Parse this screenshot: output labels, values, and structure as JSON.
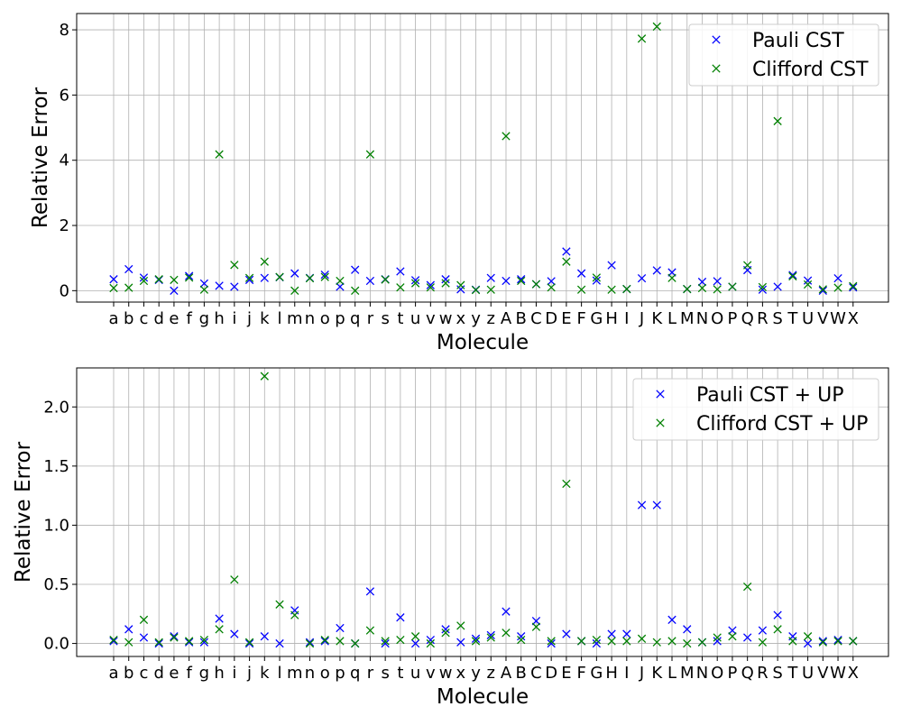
{
  "chart_data": [
    {
      "type": "scatter",
      "title": "",
      "xlabel": "Molecule",
      "ylabel": "Relative Error",
      "ylim": [
        -0.35,
        8.5
      ],
      "yticks": [
        0,
        2,
        4,
        6,
        8
      ],
      "ytick_labels": [
        "0",
        "2",
        "4",
        "6",
        "8"
      ],
      "grid": true,
      "legend_position": "top-right",
      "marker": "x",
      "categories": [
        "a",
        "b",
        "c",
        "d",
        "e",
        "f",
        "g",
        "h",
        "i",
        "j",
        "k",
        "l",
        "m",
        "n",
        "o",
        "p",
        "q",
        "r",
        "s",
        "t",
        "u",
        "v",
        "w",
        "x",
        "y",
        "z",
        "A",
        "B",
        "C",
        "D",
        "E",
        "F",
        "G",
        "H",
        "I",
        "J",
        "K",
        "L",
        "M",
        "N",
        "O",
        "P",
        "Q",
        "R",
        "S",
        "T",
        "U",
        "V",
        "W",
        "X"
      ],
      "series": [
        {
          "name": "Pauli CST",
          "color": "#0000ff",
          "values": [
            0.35,
            0.66,
            0.4,
            0.33,
            0.0,
            0.45,
            0.22,
            0.15,
            0.12,
            0.33,
            0.39,
            0.41,
            0.53,
            0.39,
            0.49,
            0.12,
            0.64,
            0.3,
            0.35,
            0.59,
            0.32,
            0.17,
            0.35,
            0.04,
            0.03,
            0.39,
            0.3,
            0.35,
            0.2,
            0.29,
            1.2,
            0.53,
            0.31,
            0.78,
            0.05,
            0.38,
            0.62,
            0.56,
            0.05,
            0.27,
            0.29,
            0.12,
            0.63,
            0.03,
            0.12,
            0.48,
            0.31,
            0.0,
            0.38,
            0.1
          ]
        },
        {
          "name": "Clifford CST",
          "color": "#008000",
          "values": [
            0.08,
            0.09,
            0.3,
            0.35,
            0.33,
            0.4,
            0.03,
            4.18,
            0.79,
            0.39,
            0.89,
            0.42,
            0.0,
            0.38,
            0.42,
            0.3,
            0.0,
            4.18,
            0.34,
            0.1,
            0.23,
            0.1,
            0.23,
            0.17,
            0.02,
            0.03,
            4.74,
            0.3,
            0.2,
            0.1,
            0.89,
            0.03,
            0.4,
            0.03,
            0.05,
            7.73,
            8.1,
            0.39,
            0.05,
            0.08,
            0.04,
            0.12,
            0.78,
            0.11,
            5.2,
            0.44,
            0.19,
            0.04,
            0.09,
            0.14
          ]
        }
      ]
    },
    {
      "type": "scatter",
      "title": "",
      "xlabel": "Molecule",
      "ylabel": "Relative Error",
      "ylim": [
        -0.11,
        2.33
      ],
      "yticks": [
        0,
        0.5,
        1.0,
        1.5,
        2.0
      ],
      "ytick_labels": [
        "0.0",
        "0.5",
        "1.0",
        "1.5",
        "2.0"
      ],
      "grid": true,
      "legend_position": "top-right",
      "marker": "x",
      "categories": [
        "a",
        "b",
        "c",
        "d",
        "e",
        "f",
        "g",
        "h",
        "i",
        "j",
        "k",
        "l",
        "m",
        "n",
        "o",
        "p",
        "q",
        "r",
        "s",
        "t",
        "u",
        "v",
        "w",
        "x",
        "y",
        "z",
        "A",
        "B",
        "C",
        "D",
        "E",
        "F",
        "G",
        "H",
        "I",
        "J",
        "K",
        "L",
        "M",
        "N",
        "O",
        "P",
        "Q",
        "R",
        "S",
        "T",
        "U",
        "V",
        "W",
        "X"
      ],
      "series": [
        {
          "name": "Pauli CST + UP",
          "color": "#0000ff",
          "values": [
            0.02,
            0.12,
            0.05,
            0.0,
            0.06,
            0.01,
            0.01,
            0.21,
            0.08,
            0.0,
            0.06,
            0.0,
            0.28,
            0.01,
            0.02,
            0.13,
            0.0,
            0.44,
            0.0,
            0.22,
            0.0,
            0.03,
            0.12,
            0.01,
            0.04,
            0.07,
            0.27,
            0.06,
            0.19,
            0.0,
            0.08,
            0.02,
            0.0,
            0.08,
            0.08,
            1.17,
            1.17,
            0.2,
            0.12,
            0.01,
            0.02,
            0.11,
            0.05,
            0.11,
            0.24,
            0.06,
            0.0,
            0.02,
            0.03,
            0.02
          ]
        },
        {
          "name": "Clifford CST + UP",
          "color": "#008000",
          "values": [
            0.03,
            0.01,
            0.2,
            0.01,
            0.05,
            0.02,
            0.03,
            0.12,
            0.54,
            0.01,
            2.26,
            0.33,
            0.24,
            0.0,
            0.03,
            0.02,
            0.0,
            0.11,
            0.02,
            0.03,
            0.06,
            0.0,
            0.09,
            0.15,
            0.02,
            0.05,
            0.09,
            0.03,
            0.14,
            0.02,
            1.35,
            0.02,
            0.03,
            0.02,
            0.02,
            0.04,
            0.01,
            0.02,
            0.0,
            0.01,
            0.05,
            0.06,
            0.48,
            0.01,
            0.12,
            0.02,
            0.06,
            0.01,
            0.02,
            0.02
          ]
        }
      ]
    }
  ]
}
